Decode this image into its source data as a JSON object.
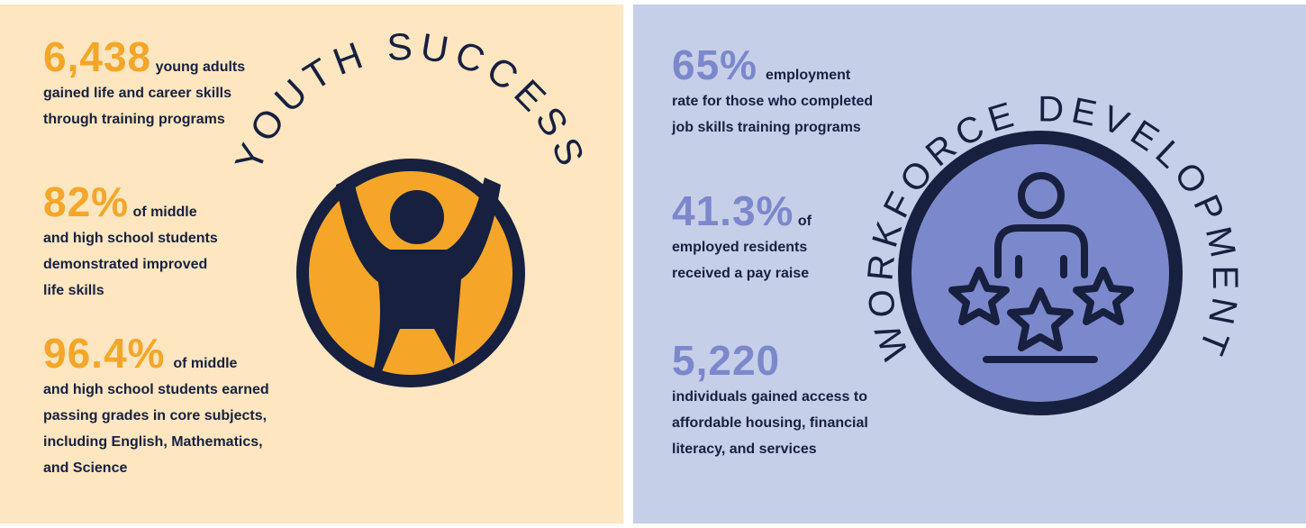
{
  "youth": {
    "title": "YOUTH SUCCESS",
    "stats": [
      {
        "value": "6,438",
        "suffix": "young adults",
        "desc": "gained life and career skills\nthrough training programs"
      },
      {
        "value": "82%",
        "suffix": "of middle",
        "desc": "and high school students\ndemonstrated improved\nlife skills"
      },
      {
        "value": "96.4%",
        "suffix": "of middle",
        "desc": "and high school students earned\npassing grades in core subjects,\nincluding English, Mathematics,\nand Science"
      }
    ],
    "colors": {
      "background": "#fde6c0",
      "accent": "#f5a628",
      "ink": "#17203f"
    },
    "icon": "person-arms-raised-icon"
  },
  "workforce": {
    "title": "WORKFORCE DEVELOPMENT",
    "stats": [
      {
        "value": "65%",
        "suffix": "employment",
        "desc": "rate for those who completed\njob skills training programs"
      },
      {
        "value": "41.3%",
        "suffix": "of",
        "desc": "employed residents\nreceived a pay raise"
      },
      {
        "value": "5,220",
        "suffix": "",
        "desc": "individuals gained access to\naffordable housing, financial\nliteracy, and services"
      }
    ],
    "colors": {
      "background": "#c6cfe8",
      "accent": "#7c88cc",
      "ink": "#17203f"
    },
    "icon": "person-with-stars-icon"
  }
}
